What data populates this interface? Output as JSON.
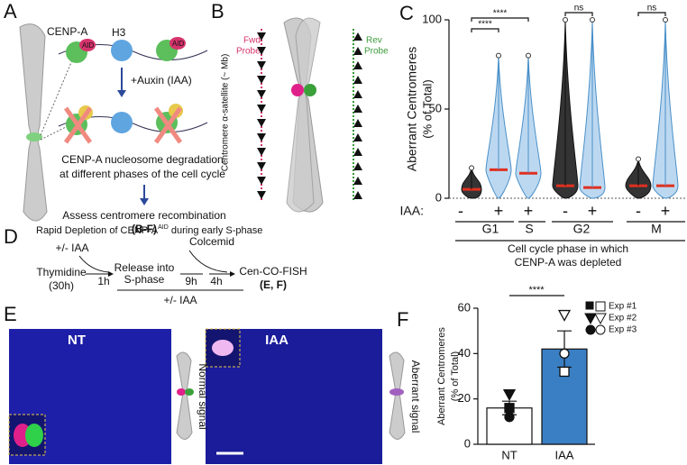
{
  "panel_labels": [
    "A",
    "B",
    "C",
    "D",
    "E",
    "F"
  ],
  "panel_a": {
    "cenpa": "CENP-A",
    "aid": "AID",
    "h3": "H3",
    "treatment": "+Auxin (IAA)",
    "caption": [
      "CENP-A nucleosome degradation",
      "at different phases of the cell cycle"
    ],
    "assess": "Assess centromere recombination",
    "assess_ref": "(B-F)"
  },
  "panel_b": {
    "y_label": "Centromere α-satellite (~ Mb)",
    "fwd": [
      "Fwd",
      "Probe"
    ],
    "rev": [
      "Rev",
      "Probe"
    ]
  },
  "panel_d": {
    "title": "Rapid Depletion of CENP-A",
    "title_sup": "AID",
    "title_end": " during early S-phase",
    "iaa_top": "+/- IAA",
    "colcemid": "Colcemid",
    "thymidine": [
      "Thymidine",
      "(30h)"
    ],
    "t1": "1h",
    "release": [
      "Release into",
      "S-phase"
    ],
    "t2": "9h",
    "t3": "4h",
    "iaa_bottom": "+/- IAA",
    "fish": "Cen-CO-FISH",
    "fish_ref": "(E, F)"
  },
  "panel_e": {
    "nt": "NT",
    "iaa": "IAA",
    "normal": "Normal signal",
    "aberrant": "Aberrant signal"
  },
  "chart_data": [
    {
      "type": "violin",
      "y_label": [
        "Aberrant Centromeres",
        "(% of Total)"
      ],
      "iaa_label": "IAA:",
      "treatments": [
        "-",
        "+",
        "+",
        "-",
        "+",
        "-",
        "+"
      ],
      "phases": [
        "G1",
        "S",
        "G2",
        "M"
      ],
      "x_title": [
        "Cell cycle phase in which",
        "CENP-A was depleted"
      ],
      "colors": [
        "#111111",
        "#4a90c8",
        "#4a90c8",
        "#111111",
        "#4a90c8",
        "#111111",
        "#4a90c8"
      ],
      "medians": [
        5,
        16,
        14,
        7,
        6,
        7,
        7
      ],
      "max": [
        17,
        80,
        80,
        100,
        100,
        22,
        100
      ],
      "significance": [
        "****",
        "****",
        "ns",
        "ns"
      ],
      "ylim": [
        0,
        100
      ],
      "yticks": [
        0,
        50,
        100
      ]
    },
    {
      "type": "bar",
      "y_label": [
        "Aberrant Centromeres",
        "(% of Total)"
      ],
      "categories": [
        "NT",
        "IAA"
      ],
      "values": [
        16,
        42
      ],
      "errors": [
        3,
        8
      ],
      "colors": [
        "#ffffff",
        "#3a7fc4"
      ],
      "series": [
        {
          "name": "Exp #1",
          "values": [
            16,
            32
          ]
        },
        {
          "name": "Exp #2",
          "values": [
            22,
            57
          ]
        },
        {
          "name": "Exp #3",
          "values": [
            12,
            40
          ]
        }
      ],
      "significance": "****",
      "ylim": [
        0,
        60
      ],
      "yticks": [
        0,
        20,
        40,
        60
      ]
    }
  ]
}
